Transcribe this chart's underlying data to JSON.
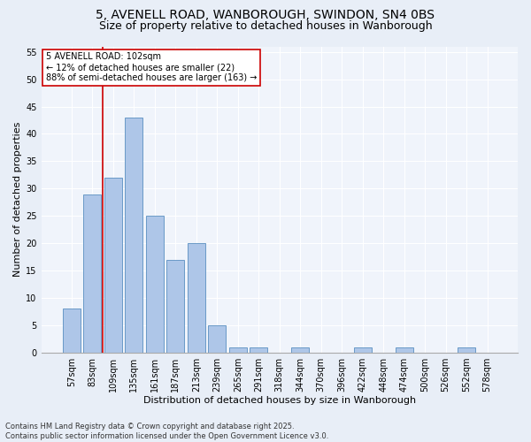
{
  "title_line1": "5, AVENELL ROAD, WANBOROUGH, SWINDON, SN4 0BS",
  "title_line2": "Size of property relative to detached houses in Wanborough",
  "xlabel": "Distribution of detached houses by size in Wanborough",
  "ylabel": "Number of detached properties",
  "bar_labels": [
    "57sqm",
    "83sqm",
    "109sqm",
    "135sqm",
    "161sqm",
    "187sqm",
    "213sqm",
    "239sqm",
    "265sqm",
    "291sqm",
    "318sqm",
    "344sqm",
    "370sqm",
    "396sqm",
    "422sqm",
    "448sqm",
    "474sqm",
    "500sqm",
    "526sqm",
    "552sqm",
    "578sqm"
  ],
  "bar_values": [
    8,
    29,
    32,
    43,
    25,
    17,
    20,
    5,
    1,
    1,
    0,
    1,
    0,
    0,
    1,
    0,
    1,
    0,
    0,
    1,
    0
  ],
  "bar_color": "#aec6e8",
  "bar_edge_color": "#5a8fc0",
  "vline_color": "#cc0000",
  "vline_x": 1.5,
  "annotation_text": "5 AVENELL ROAD: 102sqm\n← 12% of detached houses are smaller (22)\n88% of semi-detached houses are larger (163) →",
  "annotation_box_color": "#ffffff",
  "annotation_box_edge_color": "#cc0000",
  "ylim": [
    0,
    56
  ],
  "yticks": [
    0,
    5,
    10,
    15,
    20,
    25,
    30,
    35,
    40,
    45,
    50,
    55
  ],
  "footer_line1": "Contains HM Land Registry data © Crown copyright and database right 2025.",
  "footer_line2": "Contains public sector information licensed under the Open Government Licence v3.0.",
  "background_color": "#e8eef7",
  "plot_background_color": "#f0f4fb",
  "grid_color": "#ffffff",
  "title_fontsize": 10,
  "subtitle_fontsize": 9,
  "tick_fontsize": 7,
  "ylabel_fontsize": 8,
  "xlabel_fontsize": 8,
  "annotation_fontsize": 7,
  "footer_fontsize": 6
}
